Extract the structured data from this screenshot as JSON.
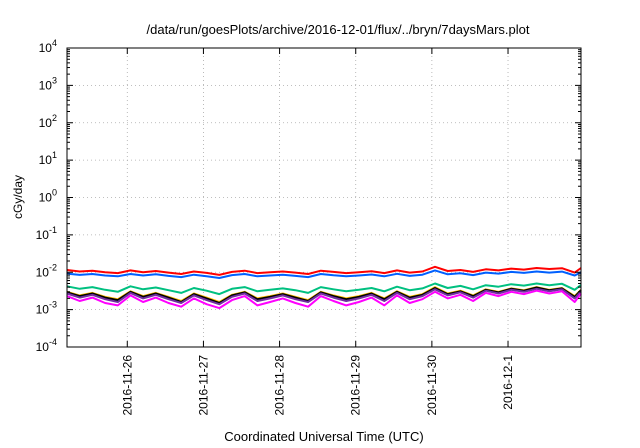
{
  "chart_data": {
    "type": "line",
    "title": "/data/run/goesPlots/archive/2016-12-01/flux/../bryn/7daysMars.plot",
    "xlabel": "Coordinated Universal Time (UTC)",
    "ylabel": "cGy/day",
    "yscale": "log",
    "ylim": [
      0.0001,
      10000
    ],
    "xlim": [
      "2016-11-25 05:00",
      "2016-12-01 23:00"
    ],
    "grid": true,
    "y_ticks": [
      {
        "base": "10",
        "exp": "-4"
      },
      {
        "base": "10",
        "exp": "-3"
      },
      {
        "base": "10",
        "exp": "-2"
      },
      {
        "base": "10",
        "exp": "-1"
      },
      {
        "base": "10",
        "exp": "0"
      },
      {
        "base": "10",
        "exp": "1"
      },
      {
        "base": "10",
        "exp": "2"
      },
      {
        "base": "10",
        "exp": "3"
      },
      {
        "base": "10",
        "exp": "4"
      }
    ],
    "x_ticks": [
      {
        "label": "2016-11-26",
        "x": "2016-11-26 00:00"
      },
      {
        "label": "2016-11-27",
        "x": "2016-11-27 00:00"
      },
      {
        "label": "2016-11-28",
        "x": "2016-11-28 00:00"
      },
      {
        "label": "2016-11-29",
        "x": "2016-11-29 00:00"
      },
      {
        "label": "2016-11-30",
        "x": "2016-11-30 00:00"
      },
      {
        "label": "2016-12-1",
        "x": "2016-12-01 00:00"
      }
    ],
    "x": [
      "2016-11-25 05:00",
      "2016-11-25 09:00",
      "2016-11-25 13:00",
      "2016-11-25 17:00",
      "2016-11-25 21:00",
      "2016-11-26 01:00",
      "2016-11-26 05:00",
      "2016-11-26 09:00",
      "2016-11-26 13:00",
      "2016-11-26 17:00",
      "2016-11-26 21:00",
      "2016-11-27 01:00",
      "2016-11-27 05:00",
      "2016-11-27 09:00",
      "2016-11-27 13:00",
      "2016-11-27 17:00",
      "2016-11-27 21:00",
      "2016-11-28 01:00",
      "2016-11-28 05:00",
      "2016-11-28 09:00",
      "2016-11-28 13:00",
      "2016-11-28 17:00",
      "2016-11-28 21:00",
      "2016-11-29 01:00",
      "2016-11-29 05:00",
      "2016-11-29 09:00",
      "2016-11-29 13:00",
      "2016-11-29 17:00",
      "2016-11-29 21:00",
      "2016-11-30 01:00",
      "2016-11-30 05:00",
      "2016-11-30 09:00",
      "2016-11-30 13:00",
      "2016-11-30 17:00",
      "2016-11-30 21:00",
      "2016-12-01 01:00",
      "2016-12-01 05:00",
      "2016-12-01 09:00",
      "2016-12-01 13:00",
      "2016-12-01 17:00",
      "2016-12-01 21:00",
      "2016-12-01 23:00"
    ],
    "series": [
      {
        "color": "#ff0000",
        "values": [
          0.0115,
          0.0105,
          0.011,
          0.01,
          0.0095,
          0.0112,
          0.01,
          0.0108,
          0.0098,
          0.009,
          0.0105,
          0.0096,
          0.0085,
          0.0102,
          0.011,
          0.0095,
          0.01,
          0.0105,
          0.0098,
          0.009,
          0.011,
          0.0102,
          0.0095,
          0.01,
          0.0106,
          0.0095,
          0.0112,
          0.0098,
          0.0105,
          0.014,
          0.0108,
          0.0115,
          0.0102,
          0.012,
          0.0112,
          0.0125,
          0.0118,
          0.013,
          0.0122,
          0.0128,
          0.0098,
          0.013
        ]
      },
      {
        "color": "#0060ff",
        "values": [
          0.0092,
          0.0085,
          0.009,
          0.0082,
          0.0078,
          0.009,
          0.0082,
          0.0088,
          0.008,
          0.0074,
          0.0086,
          0.0078,
          0.007,
          0.0084,
          0.009,
          0.0078,
          0.0082,
          0.0086,
          0.008,
          0.0074,
          0.009,
          0.0083,
          0.0078,
          0.0082,
          0.0087,
          0.0078,
          0.0091,
          0.008,
          0.0086,
          0.0112,
          0.0088,
          0.0094,
          0.0084,
          0.0098,
          0.0092,
          0.0102,
          0.0096,
          0.0105,
          0.0098,
          0.0104,
          0.0082,
          0.01
        ]
      },
      {
        "color": "#00c080",
        "values": [
          0.0042,
          0.0036,
          0.004,
          0.0034,
          0.003,
          0.0042,
          0.0035,
          0.0039,
          0.0033,
          0.0028,
          0.0038,
          0.0032,
          0.0026,
          0.0036,
          0.004,
          0.0031,
          0.0034,
          0.0037,
          0.0033,
          0.0028,
          0.004,
          0.0035,
          0.0031,
          0.0034,
          0.0038,
          0.0031,
          0.0041,
          0.0033,
          0.0037,
          0.005,
          0.0038,
          0.0043,
          0.0035,
          0.0045,
          0.0041,
          0.0048,
          0.0044,
          0.005,
          0.0045,
          0.0049,
          0.0034,
          0.0046
        ]
      },
      {
        "color": "#ffc000",
        "values": [
          0.003,
          0.0024,
          0.0028,
          0.0022,
          0.0019,
          0.0031,
          0.0023,
          0.0028,
          0.0022,
          0.0017,
          0.0027,
          0.0021,
          0.0016,
          0.0025,
          0.003,
          0.002,
          0.0023,
          0.0027,
          0.0022,
          0.0018,
          0.003,
          0.0024,
          0.002,
          0.0023,
          0.0028,
          0.002,
          0.0031,
          0.0022,
          0.0026,
          0.004,
          0.0027,
          0.0032,
          0.0024,
          0.0035,
          0.003,
          0.0037,
          0.0033,
          0.004,
          0.0034,
          0.0038,
          0.0023,
          0.0034
        ]
      },
      {
        "color": "#000000",
        "values": [
          0.0029,
          0.0023,
          0.0027,
          0.0021,
          0.0018,
          0.003,
          0.0022,
          0.0027,
          0.0021,
          0.0016,
          0.0026,
          0.002,
          0.0015,
          0.0024,
          0.0029,
          0.0019,
          0.0022,
          0.0026,
          0.0021,
          0.0017,
          0.0029,
          0.0023,
          0.0019,
          0.0022,
          0.0027,
          0.0019,
          0.003,
          0.0021,
          0.0025,
          0.0038,
          0.0026,
          0.0031,
          0.0023,
          0.0034,
          0.0029,
          0.0036,
          0.0032,
          0.0039,
          0.0033,
          0.0037,
          0.0022,
          0.0033
        ]
      },
      {
        "color": "#7030a0",
        "values": [
          0.0027,
          0.0021,
          0.0025,
          0.0019,
          0.0016,
          0.0028,
          0.002,
          0.0025,
          0.0019,
          0.0015,
          0.0024,
          0.0018,
          0.0014,
          0.0022,
          0.0027,
          0.0017,
          0.002,
          0.0024,
          0.0019,
          0.0016,
          0.0027,
          0.0021,
          0.0017,
          0.002,
          0.0025,
          0.0017,
          0.0028,
          0.0019,
          0.0023,
          0.0035,
          0.0024,
          0.0029,
          0.0021,
          0.0032,
          0.0027,
          0.0034,
          0.003,
          0.0036,
          0.0031,
          0.0035,
          0.002,
          0.0031
        ]
      },
      {
        "color": "#ff00ff",
        "values": [
          0.0023,
          0.0017,
          0.0021,
          0.0015,
          0.0013,
          0.0024,
          0.0016,
          0.0021,
          0.0015,
          0.0012,
          0.002,
          0.0014,
          0.0011,
          0.0018,
          0.0023,
          0.0013,
          0.0016,
          0.002,
          0.0015,
          0.0012,
          0.0023,
          0.0017,
          0.0013,
          0.0016,
          0.0021,
          0.0013,
          0.0024,
          0.0015,
          0.0019,
          0.003,
          0.002,
          0.0025,
          0.0017,
          0.0028,
          0.0023,
          0.003,
          0.0026,
          0.0032,
          0.0027,
          0.0031,
          0.0016,
          0.0027
        ]
      }
    ]
  }
}
